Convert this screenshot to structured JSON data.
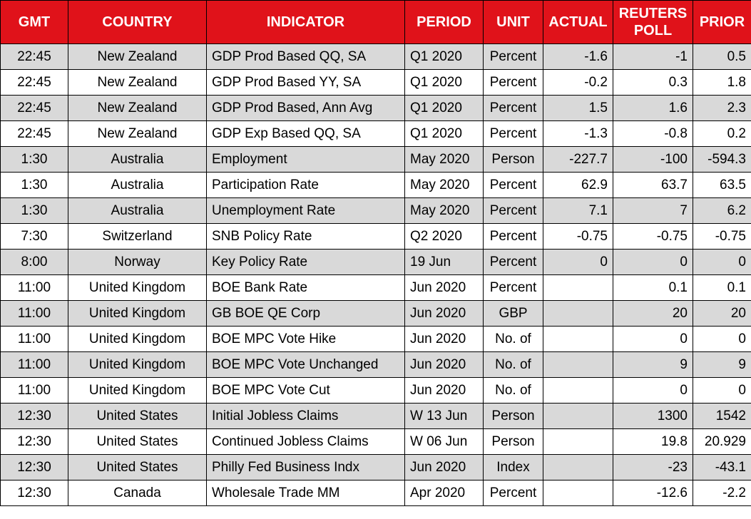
{
  "colors": {
    "header_bg": "#e0121a",
    "header_text": "#ffffff",
    "row_alt_bg": "#d9d9d9",
    "row_bg": "#ffffff",
    "border": "#000000",
    "text": "#000000"
  },
  "table": {
    "headers": [
      {
        "id": "gmt",
        "label": "GMT"
      },
      {
        "id": "country",
        "label": "COUNTRY"
      },
      {
        "id": "indicator",
        "label": "INDICATOR"
      },
      {
        "id": "period",
        "label": "PERIOD"
      },
      {
        "id": "unit",
        "label": "UNIT"
      },
      {
        "id": "actual",
        "label": "ACTUAL"
      },
      {
        "id": "reuters-poll",
        "label": "REUTERS POLL"
      },
      {
        "id": "prior",
        "label": "PRIOR"
      }
    ],
    "rows": [
      [
        "22:45",
        "New Zealand",
        "GDP Prod Based QQ, SA",
        "Q1 2020",
        "Percent",
        "-1.6",
        "-1",
        "0.5"
      ],
      [
        "22:45",
        "New Zealand",
        "GDP Prod Based YY, SA",
        "Q1 2020",
        "Percent",
        "-0.2",
        "0.3",
        "1.8"
      ],
      [
        "22:45",
        "New Zealand",
        "GDP Prod Based, Ann Avg",
        "Q1 2020",
        "Percent",
        "1.5",
        "1.6",
        "2.3"
      ],
      [
        "22:45",
        "New Zealand",
        "GDP Exp Based QQ, SA",
        "Q1 2020",
        "Percent",
        "-1.3",
        "-0.8",
        "0.2"
      ],
      [
        "1:30",
        "Australia",
        "Employment",
        "May 2020",
        "Person",
        "-227.7",
        "-100",
        "-594.3"
      ],
      [
        "1:30",
        "Australia",
        "Participation Rate",
        "May 2020",
        "Percent",
        "62.9",
        "63.7",
        "63.5"
      ],
      [
        "1:30",
        "Australia",
        "Unemployment Rate",
        "May 2020",
        "Percent",
        "7.1",
        "7",
        "6.2"
      ],
      [
        "7:30",
        "Switzerland",
        "SNB Policy Rate",
        "Q2 2020",
        "Percent",
        "-0.75",
        "-0.75",
        "-0.75"
      ],
      [
        "8:00",
        "Norway",
        "Key Policy Rate",
        "19 Jun",
        "Percent",
        "0",
        "0",
        "0"
      ],
      [
        "11:00",
        "United Kingdom",
        "BOE Bank Rate",
        "Jun 2020",
        "Percent",
        "",
        "0.1",
        "0.1"
      ],
      [
        "11:00",
        "United Kingdom",
        "GB BOE QE Corp",
        "Jun 2020",
        "GBP",
        "",
        "20",
        "20"
      ],
      [
        "11:00",
        "United Kingdom",
        "BOE MPC Vote Hike",
        "Jun 2020",
        "No. of",
        "",
        "0",
        "0"
      ],
      [
        "11:00",
        "United Kingdom",
        "BOE MPC Vote Unchanged",
        "Jun 2020",
        "No. of",
        "",
        "9",
        "9"
      ],
      [
        "11:00",
        "United Kingdom",
        "BOE MPC Vote Cut",
        "Jun 2020",
        "No. of",
        "",
        "0",
        "0"
      ],
      [
        "12:30",
        "United States",
        "Initial Jobless Claims",
        "W 13 Jun",
        "Person",
        "",
        "1300",
        "1542"
      ],
      [
        "12:30",
        "United States",
        "Continued Jobless Claims",
        "W 06 Jun",
        "Person",
        "",
        "19.8",
        "20.929"
      ],
      [
        "12:30",
        "United States",
        "Philly Fed Business Indx",
        "Jun 2020",
        "Index",
        "",
        "-23",
        "-43.1"
      ],
      [
        "12:30",
        "Canada",
        "Wholesale Trade MM",
        "Apr 2020",
        "Percent",
        "",
        "-12.6",
        "-2.2"
      ]
    ]
  }
}
